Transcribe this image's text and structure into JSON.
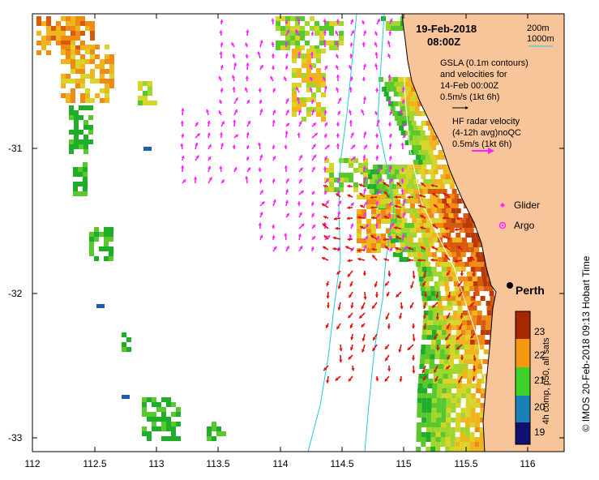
{
  "map": {
    "date": "19-Feb-2018",
    "time": "08:00Z",
    "legend_depth_200": "200m",
    "legend_depth_1000": "1000m",
    "gsla_lines": [
      "GSLA (0.1m contours)",
      "and velocities for",
      "14-Feb 00:00Z"
    ],
    "gsla_scale": "0.5m/s (1kt 6h)",
    "hf_lines": [
      "HF radar velocity",
      "(4-12h avg)noQC"
    ],
    "hf_scale": "0.5m/s (1kt 6h)",
    "glider_label": "Glider",
    "argo_label": "Argo",
    "city_label": "Perth",
    "colorbar_title": "4h comp, p50, all sats",
    "colorbar_ticks": [
      "23",
      "22",
      "21",
      "20",
      "19"
    ],
    "credit": "© IMOS 20-Feb-2018 09:13 Hobart Time",
    "x_ticks": [
      "112",
      "112.5",
      "113",
      "113.5",
      "114",
      "114.5",
      "115",
      "115.5",
      "116"
    ],
    "y_ticks": [
      "-31",
      "-32",
      "-33"
    ],
    "colors": {
      "land": "#f8c49a",
      "hf_arrow": "#ff22ff",
      "gsla_arrow": "#e01010",
      "isobath": "#22c8e0"
    }
  }
}
